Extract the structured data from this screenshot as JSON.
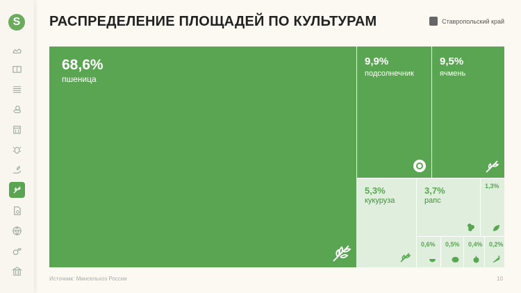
{
  "header": {
    "title": "РАСПРЕДЕЛЕНИЕ ПЛОЩАДЕЙ ПО КУЛЬТУРАМ",
    "region": "Ставропольский край"
  },
  "sidebar": {
    "logo": "S",
    "items": [
      {
        "icon": "map-icon"
      },
      {
        "icon": "farm-icon"
      },
      {
        "icon": "field-icon"
      },
      {
        "icon": "weather-icon"
      },
      {
        "icon": "calendar-icon"
      },
      {
        "icon": "pest-icon"
      },
      {
        "icon": "hand-sprout-icon"
      },
      {
        "icon": "crops-icon",
        "active": true
      },
      {
        "icon": "document-icon"
      },
      {
        "icon": "globe-icon"
      },
      {
        "icon": "fruit-icon"
      },
      {
        "icon": "government-icon"
      }
    ]
  },
  "chart_data": {
    "type": "treemap",
    "title": "РАСПРЕДЕЛЕНИЕ ПЛОЩАДЕЙ ПО КУЛЬТУРАМ",
    "unit": "%",
    "items": [
      {
        "label": "пшеница",
        "value": 68.6,
        "display": "68,6%",
        "color": "#5aa552"
      },
      {
        "label": "подсолнечник",
        "value": 9.9,
        "display": "9,9%",
        "color": "#5aa552"
      },
      {
        "label": "ячмень",
        "value": 9.5,
        "display": "9,5%",
        "color": "#5aa552"
      },
      {
        "label": "кукуруза",
        "value": 5.3,
        "display": "5,3%",
        "color": "#dfeedd"
      },
      {
        "label": "рапс",
        "value": 3.7,
        "display": "3,7%",
        "color": "#dfeedd"
      },
      {
        "label": "",
        "value": 1.3,
        "display": "1,3%",
        "color": "#dfeedd"
      },
      {
        "label": "",
        "value": 0.6,
        "display": "0,6%",
        "color": "#dfeedd"
      },
      {
        "label": "",
        "value": 0.5,
        "display": "0,5%",
        "color": "#dfeedd"
      },
      {
        "label": "",
        "value": 0.4,
        "display": "0,4%",
        "color": "#dfeedd"
      },
      {
        "label": "",
        "value": 0.2,
        "display": "0,2%",
        "color": "#dfeedd"
      }
    ]
  },
  "footer": {
    "source": "Источник: Минсельхоз России",
    "page": "10"
  }
}
